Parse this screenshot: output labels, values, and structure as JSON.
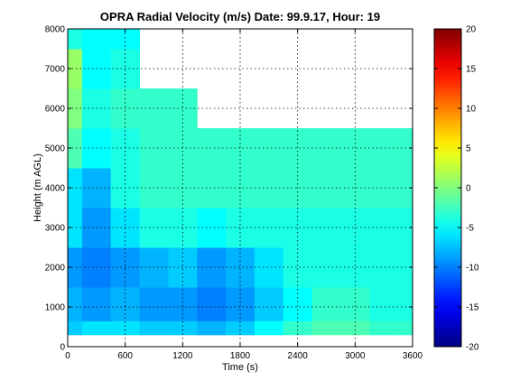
{
  "chart_data": [
    {
      "type": "heatmap",
      "title": "OPRA Radial Velocity (m/s)  Date: 99.9.17, Hour: 19",
      "xlabel": "Time (s)",
      "ylabel": "Height (m AGL)",
      "xlim": [
        0,
        3600
      ],
      "ylim": [
        0,
        8000
      ],
      "xticks": [
        0,
        600,
        1200,
        1800,
        2400,
        3000,
        3600
      ],
      "yticks": [
        0,
        1000,
        2000,
        3000,
        4000,
        5000,
        6000,
        7000,
        8000
      ],
      "grid": true,
      "x": [
        0,
        300,
        600,
        900,
        1200,
        1500,
        1800,
        2100,
        2400,
        2700,
        3000,
        3300,
        3600
      ],
      "y": [
        300,
        1000,
        2000,
        3000,
        4000,
        5000,
        6000,
        7000,
        8000
      ],
      "z": [
        [
          -7,
          -6,
          -6,
          -7,
          -7,
          -8,
          -7,
          -5,
          -3,
          -2,
          -2,
          -3,
          -3
        ],
        [
          -8,
          -9,
          -8,
          -9,
          -9,
          -10,
          -9,
          -7,
          -5,
          -3,
          -3,
          -4,
          -4
        ],
        [
          -9,
          -10,
          -9,
          -8,
          -7,
          -9,
          -8,
          -6,
          -4,
          -4,
          -4,
          -4,
          -4
        ],
        [
          -6,
          -9,
          -6,
          -4,
          -4,
          -5,
          -4,
          -4,
          -4,
          -4,
          -4,
          -4,
          -4
        ],
        [
          -6,
          -8,
          -4,
          -3,
          -3,
          -3,
          -3,
          -3,
          -3,
          -3,
          -3,
          -3,
          -3
        ],
        [
          -2,
          -5,
          -4,
          -3,
          -3,
          -3,
          -3,
          -3,
          -3,
          -3,
          -3,
          -3,
          -3
        ],
        [
          0,
          -4,
          -3,
          -3,
          -3,
          null,
          null,
          null,
          null,
          null,
          null,
          null,
          null
        ],
        [
          1,
          -5,
          -4,
          null,
          null,
          null,
          null,
          null,
          null,
          null,
          null,
          null,
          null
        ],
        [
          -4,
          -5,
          -5,
          null,
          null,
          null,
          null,
          null,
          null,
          null,
          null,
          null,
          null
        ]
      ],
      "colorbar": {
        "ticks": [
          20,
          15,
          10,
          5,
          0,
          -5,
          -10,
          -15,
          -20
        ],
        "clim": [
          -20,
          20
        ],
        "colormap": "jet"
      }
    }
  ]
}
